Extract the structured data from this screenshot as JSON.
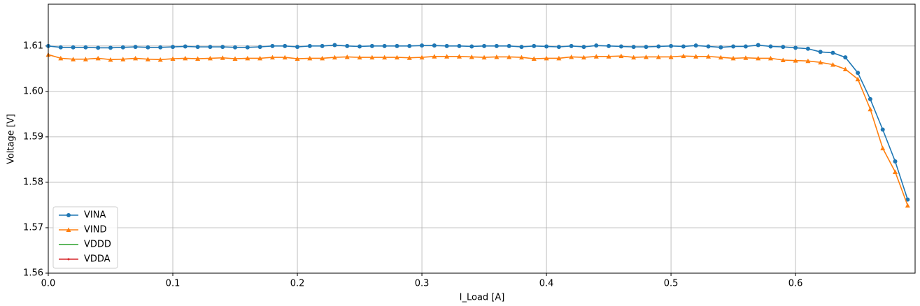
{
  "chart_data": {
    "type": "line",
    "xlabel": "I_Load [A]",
    "ylabel": "Voltage [V]",
    "x": [
      0,
      0.01,
      0.02,
      0.03,
      0.04,
      0.05,
      0.06,
      0.07,
      0.08,
      0.09,
      0.1,
      0.11,
      0.12,
      0.13,
      0.14,
      0.15,
      0.16,
      0.17,
      0.18,
      0.19,
      0.2,
      0.21,
      0.22,
      0.23,
      0.24,
      0.25,
      0.26,
      0.27,
      0.28,
      0.29,
      0.3,
      0.31,
      0.32,
      0.33,
      0.34,
      0.35,
      0.36,
      0.37,
      0.38,
      0.39,
      0.4,
      0.41,
      0.42,
      0.43,
      0.44,
      0.45,
      0.46,
      0.47,
      0.48,
      0.49,
      0.5,
      0.51,
      0.52,
      0.53,
      0.54,
      0.55,
      0.56,
      0.57,
      0.58,
      0.59,
      0.6,
      0.61,
      0.62,
      0.63,
      0.64,
      0.65,
      0.66,
      0.67,
      0.68,
      0.69
    ],
    "series": [
      {
        "name": "VINA",
        "color": "#1f77b4",
        "marker": "circle",
        "values": [
          1.61,
          1.6097,
          1.6097,
          1.6097,
          1.6096,
          1.6096,
          1.6097,
          1.6098,
          1.6097,
          1.6097,
          1.6098,
          1.6099,
          1.6098,
          1.6098,
          1.6098,
          1.6097,
          1.6097,
          1.6098,
          1.61,
          1.61,
          1.6098,
          1.61,
          1.61,
          1.6102,
          1.61,
          1.6099,
          1.61,
          1.61,
          1.61,
          1.61,
          1.6101,
          1.6101,
          1.61,
          1.61,
          1.6099,
          1.61,
          1.61,
          1.61,
          1.6098,
          1.61,
          1.6099,
          1.6098,
          1.61,
          1.6098,
          1.6101,
          1.61,
          1.6099,
          1.6098,
          1.6098,
          1.6099,
          1.61,
          1.6099,
          1.6101,
          1.6099,
          1.6097,
          1.6099,
          1.6099,
          1.6102,
          1.6099,
          1.6098,
          1.6096,
          1.6094,
          1.6087,
          1.6085,
          1.6075,
          1.6041,
          1.5983,
          1.5916,
          1.5846,
          1.5762
        ]
      },
      {
        "name": "VIND",
        "color": "#ff7f0e",
        "marker": "triangle",
        "values": [
          1.6081,
          1.6073,
          1.6071,
          1.6071,
          1.6073,
          1.607,
          1.6071,
          1.6073,
          1.6071,
          1.607,
          1.6072,
          1.6073,
          1.6072,
          1.6073,
          1.6074,
          1.6072,
          1.6073,
          1.6073,
          1.6075,
          1.6075,
          1.6072,
          1.6073,
          1.6073,
          1.6075,
          1.6076,
          1.6075,
          1.6075,
          1.6075,
          1.6075,
          1.6074,
          1.6075,
          1.6077,
          1.6077,
          1.6077,
          1.6076,
          1.6075,
          1.6076,
          1.6076,
          1.6075,
          1.6072,
          1.6073,
          1.6073,
          1.6076,
          1.6075,
          1.6077,
          1.6077,
          1.6078,
          1.6075,
          1.6076,
          1.6076,
          1.6076,
          1.6078,
          1.6077,
          1.6077,
          1.6075,
          1.6073,
          1.6074,
          1.6073,
          1.6073,
          1.6069,
          1.6068,
          1.6067,
          1.6064,
          1.6059,
          1.6049,
          1.6027,
          1.5961,
          1.5875,
          1.5823,
          1.5749
        ]
      },
      {
        "name": "VDDD",
        "color": "#2ca02c",
        "marker": "none",
        "values": [
          null,
          null,
          null,
          null,
          null,
          null,
          null,
          null,
          null,
          null,
          null,
          null,
          null,
          null,
          null,
          null,
          null,
          null,
          null,
          null,
          null,
          null,
          null,
          null,
          null,
          null,
          null,
          null,
          null,
          null,
          null,
          null,
          null,
          null,
          null,
          null,
          null,
          null,
          null,
          null,
          null,
          null,
          null,
          null,
          null,
          null,
          null,
          null,
          null,
          null,
          null,
          null,
          null,
          null,
          null,
          null,
          null,
          null,
          null,
          null,
          null,
          null,
          null,
          null,
          null,
          null,
          null,
          null,
          null,
          null
        ]
      },
      {
        "name": "VDDA",
        "color": "#d62728",
        "marker": "dot",
        "values": [
          null,
          null,
          null,
          null,
          null,
          null,
          null,
          null,
          null,
          null,
          null,
          null,
          null,
          null,
          null,
          null,
          null,
          null,
          null,
          null,
          null,
          null,
          null,
          null,
          null,
          null,
          null,
          null,
          null,
          null,
          null,
          null,
          null,
          null,
          null,
          null,
          null,
          null,
          null,
          null,
          null,
          null,
          null,
          null,
          null,
          null,
          null,
          null,
          null,
          null,
          null,
          null,
          null,
          null,
          null,
          null,
          null,
          null,
          null,
          null,
          null,
          null,
          null,
          null,
          null,
          null,
          null,
          null,
          null,
          null
        ]
      }
    ],
    "xlim": [
      0,
      0.696
    ],
    "ylim": [
      1.56,
      1.6192
    ],
    "xticks": [
      {
        "value": 0,
        "label": "0.0"
      },
      0.1,
      0.2,
      0.3,
      0.4,
      0.5,
      0.6
    ],
    "yticks": [
      1.56,
      1.57,
      1.58,
      1.59,
      {
        "value": 1.6,
        "label": "1.60"
      },
      1.61
    ],
    "grid": true,
    "legend": "lower left"
  }
}
